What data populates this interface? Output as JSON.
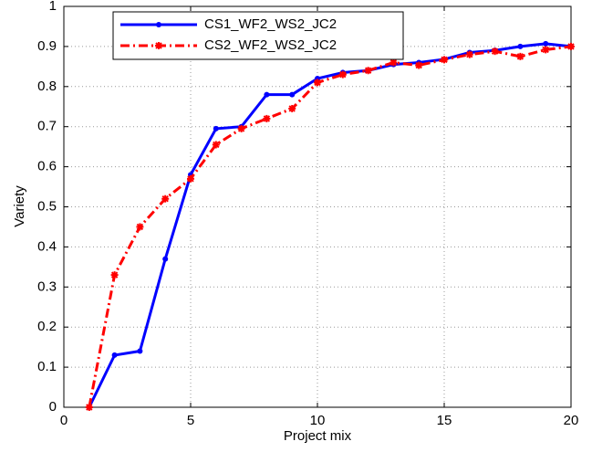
{
  "chart_data": {
    "type": "line",
    "xlabel": "Project mix",
    "ylabel": "Variety",
    "x": [
      1,
      2,
      3,
      4,
      5,
      6,
      7,
      8,
      9,
      10,
      11,
      12,
      13,
      14,
      15,
      16,
      17,
      18,
      19,
      20
    ],
    "series": [
      {
        "name": "CS1_WF2_WS2_JC2",
        "color": "#0000ff",
        "style": "solid",
        "values": [
          0,
          0.13,
          0.14,
          0.37,
          0.58,
          0.695,
          0.7,
          0.78,
          0.78,
          0.82,
          0.835,
          0.84,
          0.855,
          0.86,
          0.868,
          0.885,
          0.89,
          0.9,
          0.907,
          0.9
        ]
      },
      {
        "name": "CS2_WF2_WS2_JC2",
        "color": "#ff0000",
        "style": "dashdot",
        "values": [
          0,
          0.33,
          0.45,
          0.52,
          0.57,
          0.655,
          0.695,
          0.72,
          0.745,
          0.81,
          0.83,
          0.84,
          0.86,
          0.853,
          0.867,
          0.88,
          0.888,
          0.875,
          0.892,
          0.9
        ]
      }
    ],
    "xlim": [
      0,
      20
    ],
    "xticks": [
      0,
      5,
      10,
      15,
      20
    ],
    "ylim": [
      0,
      1
    ],
    "yticks": [
      0,
      0.1,
      0.2,
      0.3,
      0.4,
      0.5,
      0.6,
      0.7,
      0.8,
      0.9,
      1
    ],
    "grid": true,
    "legend": "top-left"
  }
}
